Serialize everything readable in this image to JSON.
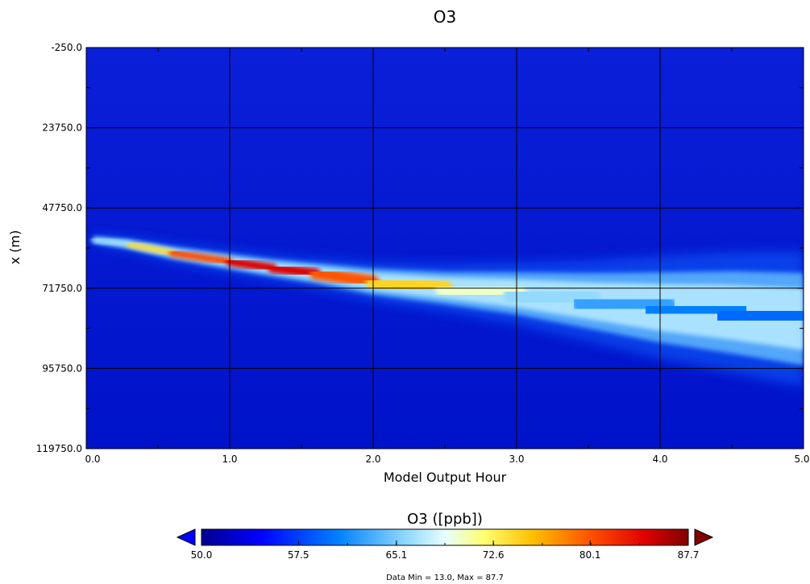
{
  "chart_data": {
    "type": "heatmap",
    "title": "O3",
    "xlabel": "Model Output Hour",
    "ylabel": "x (m)",
    "xlim": [
      0.0,
      5.0
    ],
    "ylim": [
      -250.0,
      119750.0
    ],
    "y_inverted": true,
    "x_ticks": [
      "0.0",
      "1.0",
      "2.0",
      "3.0",
      "4.0",
      "5.0"
    ],
    "y_ticks": [
      "-250.0",
      "23750.0",
      "47750.0",
      "71750.0",
      "95750.0",
      "119750.0"
    ],
    "grid": true,
    "colorbar": {
      "title": "O3 ([ppb])",
      "min": 50.0,
      "max": 87.7,
      "ticks": [
        "50.0",
        "57.5",
        "65.1",
        "72.6",
        "80.1",
        "87.7"
      ],
      "extend": "both",
      "colormap": [
        "#00008f",
        "#0000ff",
        "#0080ff",
        "#8fd8ff",
        "#e6ffff",
        "#ffff70",
        "#ffc000",
        "#ff5000",
        "#e00000",
        "#800000"
      ]
    },
    "plume": {
      "description_units": "x in model output hours, y in meters, value in ppb",
      "background_value": 50.0,
      "centerline": [
        {
          "x": 0.05,
          "y": 57250,
          "value": 62,
          "halfwidth_m": 600
        },
        {
          "x": 0.3,
          "y": 58600,
          "value": 70,
          "halfwidth_m": 900
        },
        {
          "x": 0.6,
          "y": 61200,
          "value": 78,
          "halfwidth_m": 1200
        },
        {
          "x": 1.0,
          "y": 63800,
          "value": 83,
          "halfwidth_m": 1500
        },
        {
          "x": 1.3,
          "y": 65700,
          "value": 86,
          "halfwidth_m": 1700
        },
        {
          "x": 1.6,
          "y": 67300,
          "value": 83,
          "halfwidth_m": 2000
        },
        {
          "x": 2.0,
          "y": 69800,
          "value": 77,
          "halfwidth_m": 2600
        },
        {
          "x": 2.5,
          "y": 71700,
          "value": 72,
          "halfwidth_m": 3200
        },
        {
          "x": 3.0,
          "y": 73300,
          "value": 68,
          "halfwidth_m": 4200
        },
        {
          "x": 3.5,
          "y": 75500,
          "value": 64,
          "halfwidth_m": 5500
        },
        {
          "x": 4.0,
          "y": 77500,
          "value": 61,
          "halfwidth_m": 7000
        },
        {
          "x": 4.5,
          "y": 79000,
          "value": 60,
          "halfwidth_m": 8200
        },
        {
          "x": 5.0,
          "y": 81000,
          "value": 59,
          "halfwidth_m": 9200
        }
      ]
    },
    "footer": "Data Min = 13.0, Max = 87.7"
  }
}
